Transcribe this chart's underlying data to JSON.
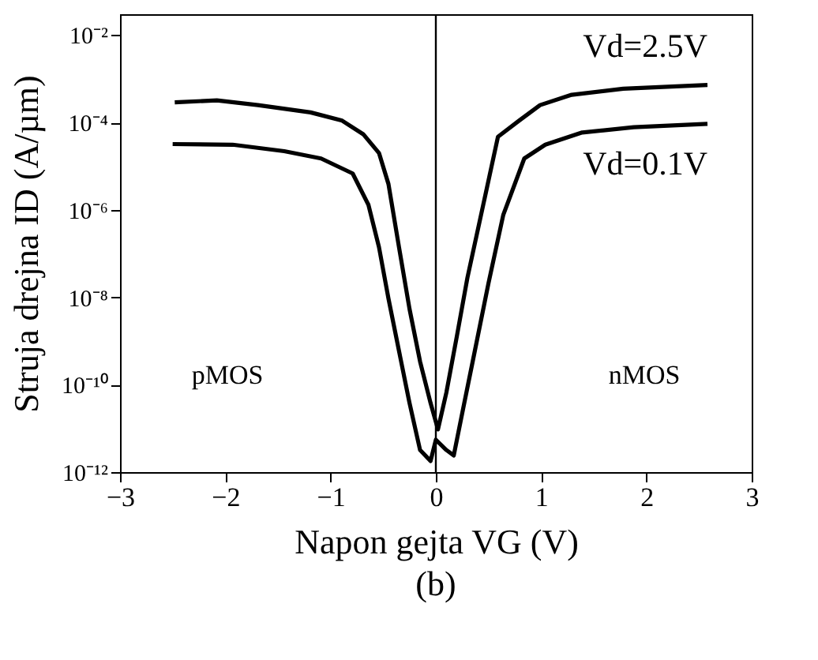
{
  "chart_data": {
    "type": "line",
    "xlabel": "Napon gejta VG (V)",
    "ylabel": "Struja drejna ID (A/µm)",
    "log": "y",
    "grid": false,
    "marker": "none",
    "line_style": "solid",
    "xlim": [
      -3,
      3
    ],
    "xticks": [
      -3,
      -2,
      -1,
      0,
      1,
      2,
      3
    ],
    "ylim": [
      1e-12,
      0.03
    ],
    "yticks": [
      {
        "value": 1e-12,
        "label": "10⁻¹²"
      },
      {
        "value": 1e-10,
        "label": "10⁻¹⁰"
      },
      {
        "value": 1e-08,
        "label": "10⁻⁸"
      },
      {
        "value": 1e-06,
        "label": "10⁻⁶"
      },
      {
        "value": 0.0001,
        "label": "10⁻⁴"
      },
      {
        "value": 0.01,
        "label": "10⁻²"
      }
    ],
    "series": [
      {
        "name": "Vd=2.5V",
        "color": "#000000",
        "x": [
          -2.48,
          -2.08,
          -1.69,
          -1.19,
          -0.89,
          -0.69,
          -0.54,
          -0.45,
          -0.35,
          -0.25,
          -0.15,
          -0.05,
          0.02,
          0.1,
          0.2,
          0.3,
          0.45,
          0.59,
          0.79,
          0.99,
          1.29,
          1.78,
          2.58
        ],
        "values": [
          0.00029,
          0.00032,
          0.00025,
          0.00017,
          0.00011,
          5.4e-05,
          2e-05,
          3.9e-06,
          1.4e-07,
          5.4e-09,
          3.4e-10,
          3.8e-11,
          9.5e-12,
          6.6e-11,
          1.3e-09,
          2.8e-08,
          1.3e-06,
          4.7e-05,
          0.00011,
          0.00025,
          0.00043,
          0.00059,
          0.00072
        ]
      },
      {
        "name": "Vd=0.1V",
        "color": "#000000",
        "x": [
          -2.5,
          -1.93,
          -1.44,
          -1.09,
          -0.79,
          -0.64,
          -0.54,
          -0.45,
          -0.35,
          -0.25,
          -0.15,
          -0.05,
          0.0,
          0.1,
          0.17,
          0.25,
          0.35,
          0.5,
          0.64,
          0.84,
          1.04,
          1.39,
          1.88,
          2.58
        ],
        "values": [
          3.2e-05,
          3.1e-05,
          2.2e-05,
          1.5e-05,
          6.8e-06,
          1.3e-06,
          1.4e-07,
          9.3e-09,
          5.9e-10,
          3.8e-11,
          3.2e-12,
          1.8e-12,
          5.5e-12,
          3.2e-12,
          2.4e-12,
          2.2e-11,
          3.4e-10,
          2.1e-08,
          7.6e-07,
          1.5e-05,
          3.1e-05,
          5.9e-05,
          7.8e-05,
          9.3e-05
        ]
      }
    ],
    "ref_lines": [
      {
        "axis": "x",
        "value": 0,
        "color": "#000000"
      }
    ],
    "annotations": [
      "pMOS",
      "nMOS",
      "(b)"
    ]
  }
}
